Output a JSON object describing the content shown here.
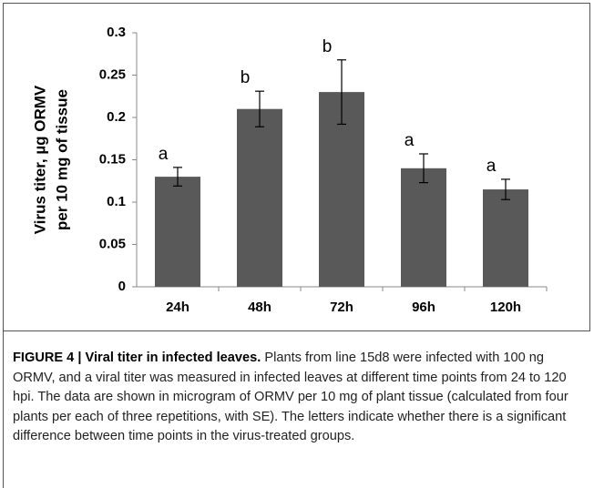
{
  "chart_data": {
    "type": "bar",
    "categories": [
      "24h",
      "48h",
      "72h",
      "96h",
      "120h"
    ],
    "values": [
      0.13,
      0.21,
      0.23,
      0.14,
      0.115
    ],
    "errors": [
      0.011,
      0.021,
      0.038,
      0.017,
      0.012
    ],
    "annotations": [
      "a",
      "b",
      "b",
      "a",
      "a"
    ],
    "color": "#595959",
    "ylabel": [
      "Virus titer, µg ORMV",
      "per 10 mg of tissue"
    ],
    "ylim": [
      0,
      0.3
    ],
    "yticks": [
      0,
      0.05,
      0.1,
      0.15,
      0.2,
      0.25,
      0.3
    ],
    "grid": false
  },
  "caption": {
    "label": "FIGURE 4 |",
    "title": "Viral titer in infected leaves.",
    "text": "Plants from line 15d8 were infected with 100 ng ORMV, and a viral titer was measured in infected leaves at different time points from 24 to 120 hpi. The data are shown in microgram of ORMV per 10 mg of plant tissue (calculated from four plants per each of three repetitions, with SE). The letters indicate whether there is a significant difference between time points in the virus-treated groups."
  }
}
